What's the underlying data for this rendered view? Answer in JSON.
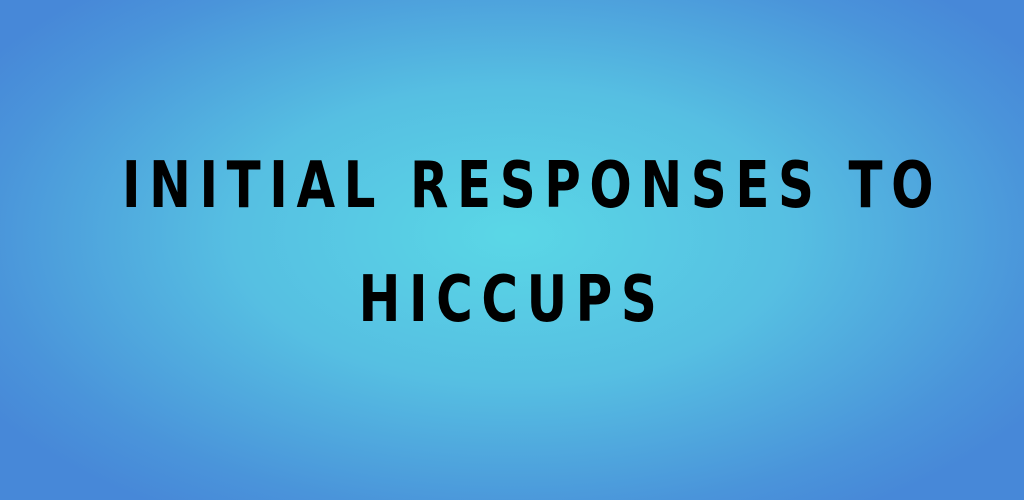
{
  "banner": {
    "title_lines": [
      "INITIAL RESPONSES TO",
      "HICCUPS"
    ],
    "text_color": "#000000",
    "background_center_color": "#5ad7e6",
    "background_edge_color": "#4788d8"
  }
}
